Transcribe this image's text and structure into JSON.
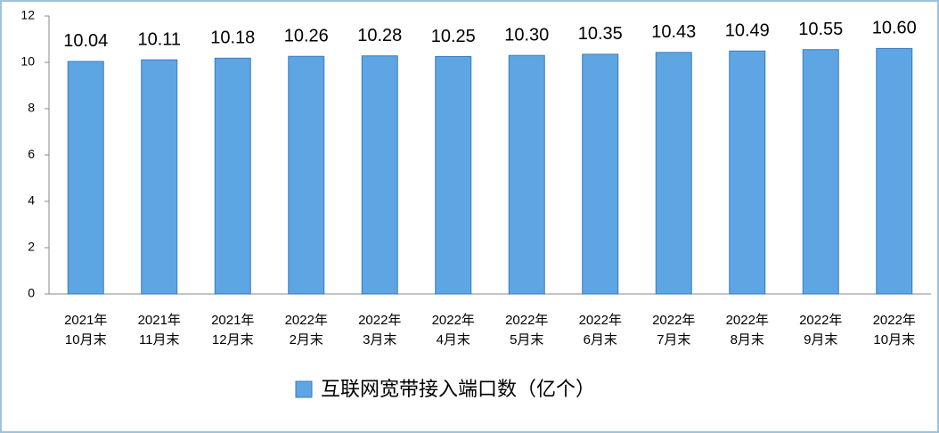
{
  "chart_data": {
    "type": "bar",
    "categories": [
      [
        "2021年",
        "10月末"
      ],
      [
        "2021年",
        "11月末"
      ],
      [
        "2021年",
        "12月末"
      ],
      [
        "2022年",
        "2月末"
      ],
      [
        "2022年",
        "3月末"
      ],
      [
        "2022年",
        "4月末"
      ],
      [
        "2022年",
        "5月末"
      ],
      [
        "2022年",
        "6月末"
      ],
      [
        "2022年",
        "7月末"
      ],
      [
        "2022年",
        "8月末"
      ],
      [
        "2022年",
        "9月末"
      ],
      [
        "2022年",
        "10月末"
      ]
    ],
    "series": [
      {
        "name": "互联网宽带接入端口数（亿个）",
        "color": "#5ea5e3",
        "values": [
          10.04,
          10.11,
          10.18,
          10.26,
          10.28,
          10.25,
          10.3,
          10.35,
          10.43,
          10.49,
          10.55,
          10.6
        ],
        "value_labels": [
          "10.04",
          "10.11",
          "10.18",
          "10.26",
          "10.28",
          "10.25",
          "10.30",
          "10.35",
          "10.43",
          "10.49",
          "10.55",
          "10.60"
        ]
      }
    ],
    "ylim": [
      0,
      12
    ],
    "yticks": [
      0,
      2,
      4,
      6,
      8,
      10,
      12
    ],
    "grid": false
  }
}
